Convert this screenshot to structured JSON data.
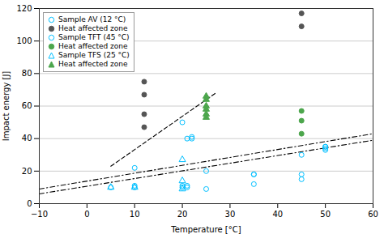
{
  "chart_data": {
    "type": "scatter",
    "xlabel": "Temperature [°C]",
    "ylabel": "Impact energy [J]",
    "xlim": [
      -10,
      60
    ],
    "ylim": [
      0,
      120
    ],
    "xticks": [
      -10,
      0,
      10,
      20,
      30,
      40,
      50,
      60
    ],
    "yticks": [
      0,
      20,
      40,
      60,
      80,
      100,
      120
    ],
    "grid": "y",
    "legend": "upper left",
    "series": [
      {
        "name": "Sample AV (12 °C)",
        "type": "scatter",
        "marker": "circle-open",
        "color": "#00BFFF",
        "x": [
          5,
          10,
          10,
          20,
          21,
          35,
          35,
          45,
          45,
          50,
          50
        ],
        "values": [
          10,
          11,
          22,
          50,
          40,
          18,
          12,
          15,
          30,
          35,
          34
        ]
      },
      {
        "name": "Heat affected zone",
        "type": "scatter",
        "marker": "circle",
        "color": "#555555",
        "x": [
          12,
          12,
          12,
          12,
          45,
          45
        ],
        "values": [
          75,
          67,
          55,
          47,
          117,
          109
        ]
      },
      {
        "name": "Sample TFT (45 °C)",
        "type": "scatter",
        "marker": "circle-open",
        "color": "#00BFFF",
        "x": [
          10,
          20,
          20,
          21,
          21,
          22,
          22,
          25,
          25,
          35,
          45,
          50,
          50
        ],
        "values": [
          10,
          11,
          10,
          11,
          10,
          40,
          41,
          20,
          9,
          18,
          18,
          35,
          33
        ]
      },
      {
        "name": "Heat affected zone",
        "type": "scatter",
        "marker": "circle",
        "color": "#4CA64C",
        "x": [
          45,
          45,
          45
        ],
        "values": [
          57,
          51,
          43
        ]
      },
      {
        "name": "Sample TFS (25 °C)",
        "type": "scatter",
        "marker": "triangle-open",
        "color": "#00BFFF",
        "x": [
          5,
          10,
          20,
          20,
          20
        ],
        "values": [
          10,
          10,
          27,
          14,
          9
        ]
      },
      {
        "name": "Heat affected zone",
        "type": "scatter",
        "marker": "triangle",
        "color": "#4CA64C",
        "x": [
          25,
          25,
          25,
          25,
          25,
          25
        ],
        "values": [
          66,
          64,
          60,
          58,
          55,
          53
        ]
      },
      {
        "type": "line",
        "line_style": "dashdot",
        "color": "black",
        "x": [
          -10,
          60
        ],
        "values": [
          6,
          39
        ]
      },
      {
        "type": "line",
        "line_style": "dashdot",
        "color": "black",
        "x": [
          -10,
          60
        ],
        "values": [
          9,
          43
        ]
      },
      {
        "type": "line",
        "line_style": "dashed",
        "color": "black",
        "x": [
          5,
          27
        ],
        "values": [
          23,
          68
        ]
      }
    ]
  }
}
